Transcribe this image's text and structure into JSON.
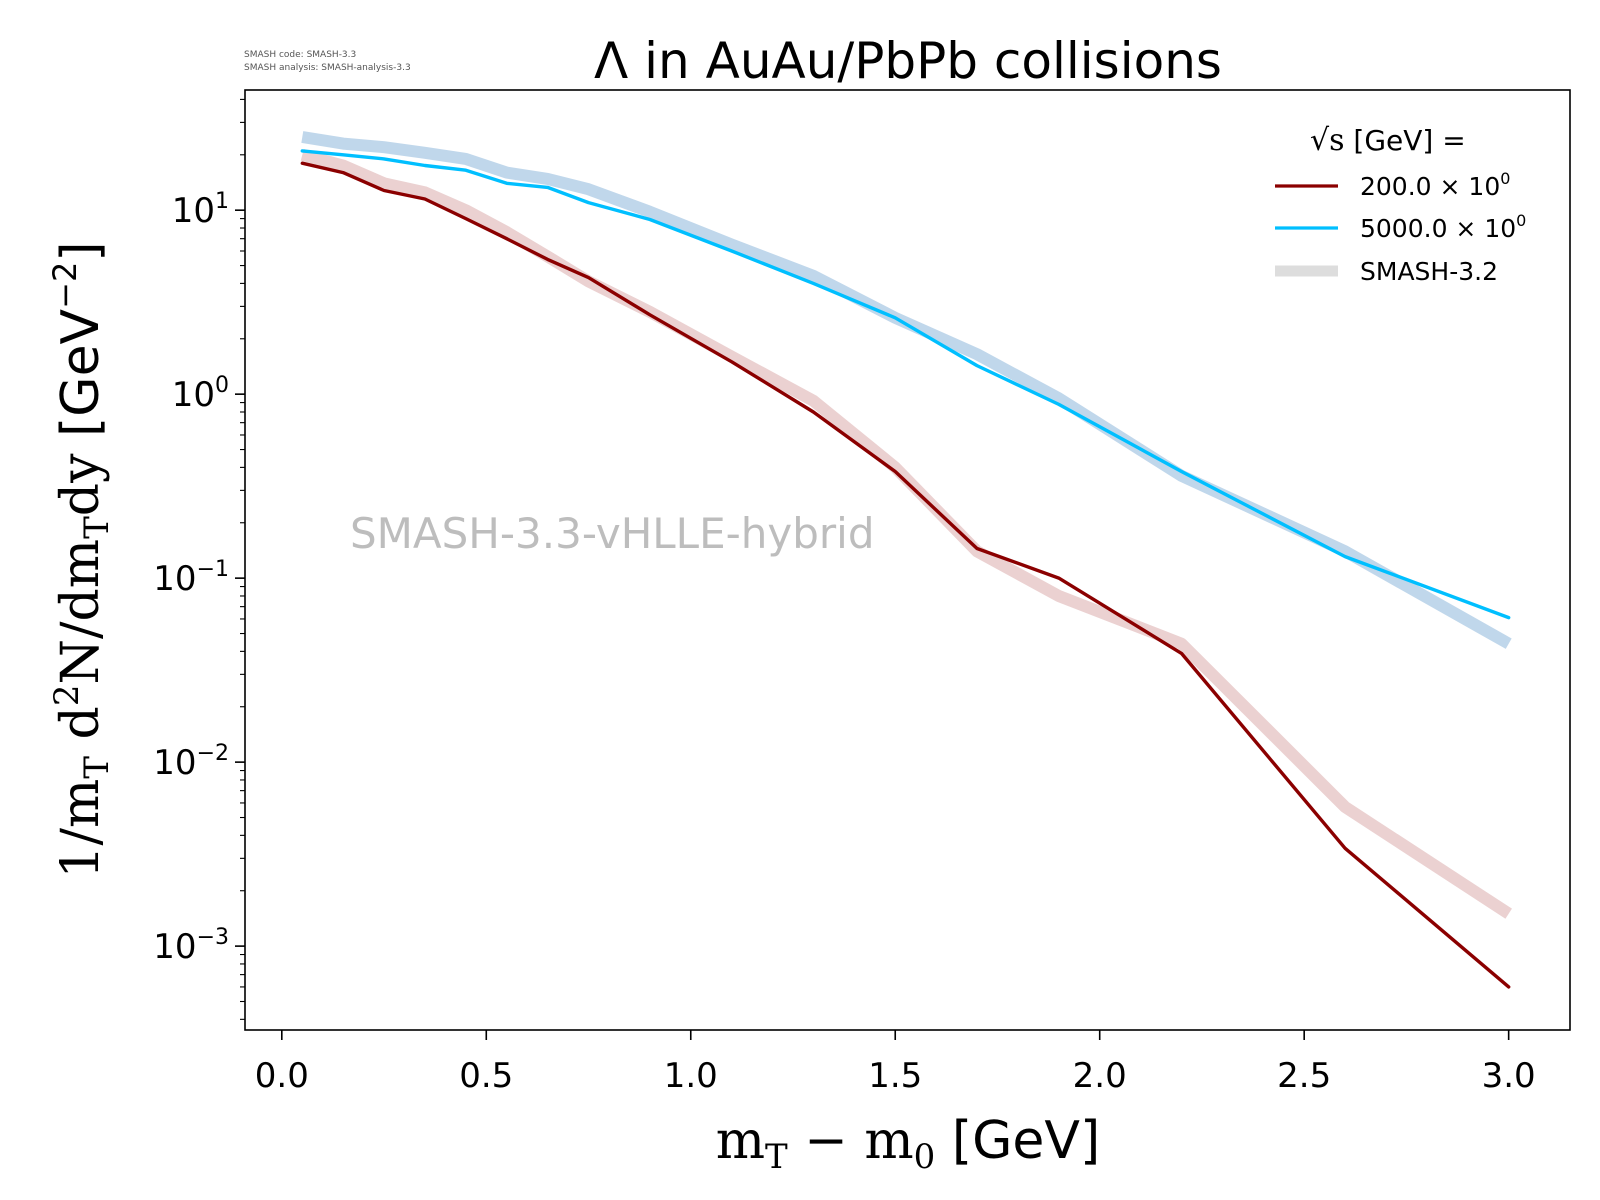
{
  "chart_data": {
    "type": "line",
    "title": "Λ in AuAu/PbPb collisions",
    "meta_lines": [
      "SMASH code:      SMASH-3.3",
      "SMASH analysis: SMASH-analysis-3.3"
    ],
    "watermark": "SMASH-3.3-vHLLE-hybrid",
    "xlabel": {
      "main": "m",
      "sub1": "T",
      "mid": " − m",
      "sub2": "0",
      "unit": " [GeV]"
    },
    "ylabel": {
      "p1": "1/m",
      "s1": "T",
      "p2": " d",
      "sup": "2",
      "p3": "N/dm",
      "s2": "T",
      "p4": "dy",
      "u1": " [GeV",
      "usup": "−2",
      "u2": "]"
    },
    "x_ticks": [
      "0.0",
      "0.5",
      "1.0",
      "1.5",
      "2.0",
      "2.5",
      "3.0"
    ],
    "x_tick_values": [
      0.0,
      0.5,
      1.0,
      1.5,
      2.0,
      2.5,
      3.0
    ],
    "y_ticks": [
      {
        "base": "10",
        "exp": "1",
        "value": 10
      },
      {
        "base": "10",
        "exp": "0",
        "value": 1
      },
      {
        "base": "10",
        "exp": "−1",
        "value": 0.1
      },
      {
        "base": "10",
        "exp": "−2",
        "value": 0.01
      },
      {
        "base": "10",
        "exp": "−3",
        "value": 0.001
      }
    ],
    "xlim": [
      -0.09,
      3.15
    ],
    "ylim": [
      0.00035,
      45
    ],
    "yscale": "log",
    "legend": {
      "position": "top-right",
      "title_symbol": "√s",
      "title_rest": "  [GeV] =",
      "entries": [
        {
          "label": "200.0 × 10",
          "sup": "0",
          "color": "#8b0000",
          "style": "line"
        },
        {
          "label": "5000.0 × 10",
          "sup": "0",
          "color": "#00bfff",
          "style": "line"
        },
        {
          "label": "SMASH-3.2",
          "sup": "",
          "color": "#dddddd",
          "style": "band"
        }
      ]
    },
    "series": [
      {
        "name": "200.0 × 10⁰",
        "color": "#8b0000",
        "x": [
          0.05,
          0.15,
          0.25,
          0.35,
          0.45,
          0.55,
          0.65,
          0.75,
          0.9,
          1.1,
          1.3,
          1.5,
          1.7,
          1.9,
          2.2,
          2.6,
          3.0
        ],
        "y": [
          18.0,
          16.0,
          12.8,
          11.5,
          9.0,
          7.0,
          5.4,
          4.3,
          2.7,
          1.5,
          0.8,
          0.38,
          0.145,
          0.1,
          0.039,
          0.0034,
          0.0006
        ]
      },
      {
        "name": "5000.0 × 10⁰",
        "color": "#00bfff",
        "x": [
          0.05,
          0.15,
          0.25,
          0.35,
          0.45,
          0.55,
          0.65,
          0.75,
          0.9,
          1.1,
          1.3,
          1.5,
          1.7,
          1.9,
          2.2,
          2.6,
          3.0
        ],
        "y": [
          21.0,
          20.0,
          19.0,
          17.5,
          16.5,
          14.0,
          13.3,
          11.0,
          8.9,
          6.0,
          4.0,
          2.6,
          1.43,
          0.88,
          0.38,
          0.131,
          0.061
        ]
      },
      {
        "name": "SMASH-3.2 (200.0)",
        "color": "#e9cccc",
        "x": [
          0.05,
          0.15,
          0.25,
          0.35,
          0.45,
          0.55,
          0.65,
          0.75,
          0.9,
          1.1,
          1.3,
          1.5,
          1.7,
          1.9,
          2.2,
          2.6,
          3.0
        ],
        "y": [
          20.0,
          17.5,
          14.0,
          12.5,
          10.0,
          7.6,
          5.6,
          4.1,
          2.8,
          1.6,
          0.92,
          0.4,
          0.14,
          0.08,
          0.044,
          0.0057,
          0.0015
        ]
      },
      {
        "name": "SMASH-3.2 (5000.0)",
        "color": "#b9d3e9",
        "x": [
          0.05,
          0.15,
          0.25,
          0.35,
          0.45,
          0.55,
          0.65,
          0.75,
          0.9,
          1.1,
          1.3,
          1.5,
          1.7,
          1.9,
          2.2,
          2.6,
          3.0
        ],
        "y": [
          25.0,
          23.0,
          22.0,
          20.5,
          19.0,
          16.0,
          14.8,
          13.0,
          9.8,
          6.5,
          4.4,
          2.6,
          1.65,
          0.95,
          0.36,
          0.14,
          0.044
        ]
      }
    ]
  }
}
